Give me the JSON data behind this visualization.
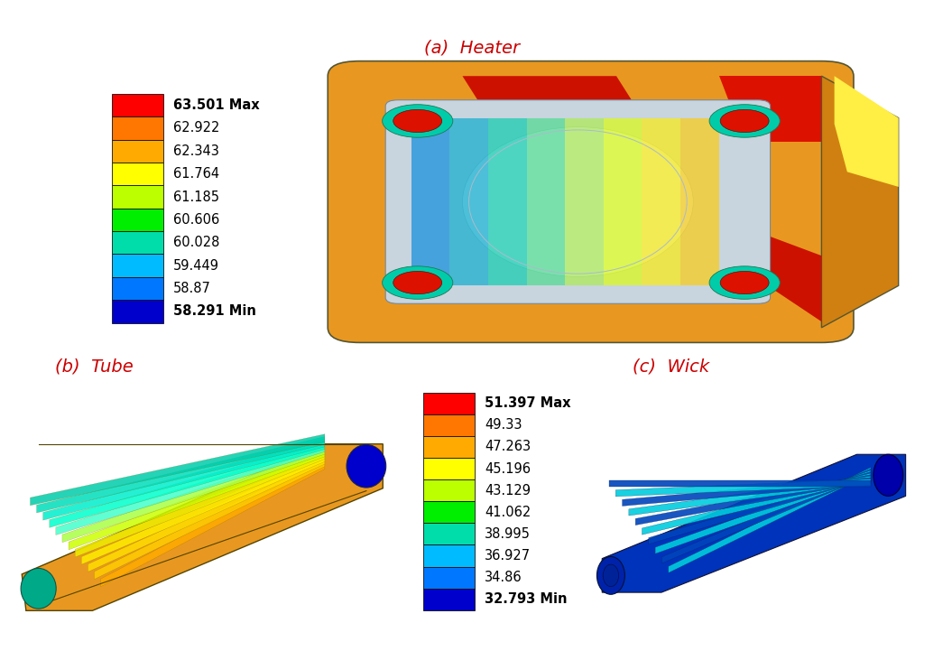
{
  "title_a": "(a)  Heater",
  "title_b": "(b)  Tube",
  "title_c": "(c)  Wick",
  "title_color": "#cc0000",
  "bg_color": "#ffffff",
  "heater_legend": {
    "values": [
      "63.501 Max",
      "62.922",
      "62.343",
      "61.764",
      "61.185",
      "60.606",
      "60.028",
      "59.449",
      "58.87",
      "58.291 Min"
    ],
    "colors": [
      "#ff0000",
      "#ff7700",
      "#ffaa00",
      "#ffff00",
      "#bbff00",
      "#00ee00",
      "#00ddaa",
      "#00bbff",
      "#0077ff",
      "#0000cc"
    ]
  },
  "tube_wick_legend": {
    "values": [
      "51.397 Max",
      "49.33",
      "47.263",
      "45.196",
      "43.129",
      "41.062",
      "38.995",
      "36.927",
      "34.86",
      "32.793 Min"
    ],
    "colors": [
      "#ff0000",
      "#ff7700",
      "#ffaa00",
      "#ffff00",
      "#bbff00",
      "#00ee00",
      "#00ddaa",
      "#00bbff",
      "#0077ff",
      "#0000cc"
    ]
  },
  "font_size_title": 14,
  "font_size_legend": 10.5,
  "heater_img_bounds": [
    0.3,
    0.46,
    0.68,
    0.46
  ],
  "tube_img_bounds": [
    0.01,
    0.03,
    0.44,
    0.4
  ],
  "wick_img_bounds": [
    0.62,
    0.03,
    0.37,
    0.4
  ],
  "legend_a_bounds": [
    0.11,
    0.48,
    0.18,
    0.4
  ],
  "legend_bc_bounds": [
    0.44,
    0.04,
    0.18,
    0.38
  ]
}
